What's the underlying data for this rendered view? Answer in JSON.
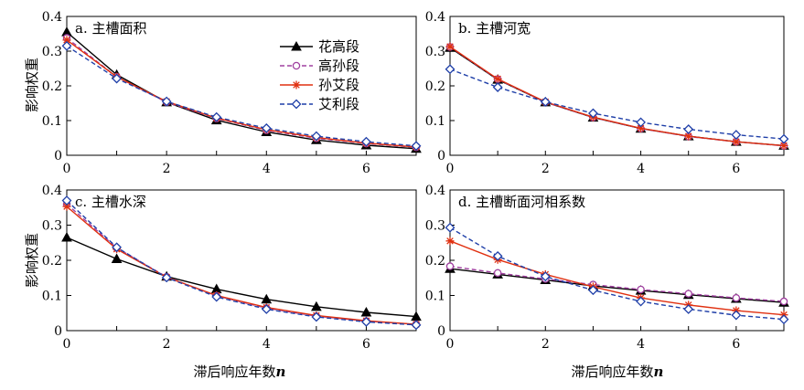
{
  "figure": {
    "y_axis_label": "影响权重",
    "x_axis_label_text": "滞后响应年数",
    "x_axis_label_var": "n"
  },
  "legend": [
    {
      "name": "花高段",
      "color": "#000000",
      "marker": "triangle",
      "dash": "solid"
    },
    {
      "name": "高孙段",
      "color": "#a040a0",
      "marker": "circle",
      "dash": "dash"
    },
    {
      "name": "孙艾段",
      "color": "#e03010",
      "marker": "star",
      "dash": "solid"
    },
    {
      "name": "艾利段",
      "color": "#1f3fa8",
      "marker": "diamond",
      "dash": "dash"
    }
  ],
  "chart_data": [
    {
      "type": "line",
      "title": "a. 主槽面积",
      "x": [
        0,
        1,
        2,
        3,
        4,
        5,
        6,
        7
      ],
      "xlim": [
        0,
        7
      ],
      "ylim": [
        0,
        0.4
      ],
      "xticks": [
        "0",
        "2",
        "4",
        "6"
      ],
      "yticks": [
        "0",
        "0.1",
        "0.2",
        "0.3",
        "0.4"
      ],
      "series": [
        {
          "name": "花高段",
          "values": [
            0.355,
            0.232,
            0.153,
            0.101,
            0.067,
            0.044,
            0.029,
            0.019
          ]
        },
        {
          "name": "高孙段",
          "values": [
            0.338,
            0.226,
            0.153,
            0.106,
            0.072,
            0.049,
            0.034,
            0.023
          ]
        },
        {
          "name": "孙艾段",
          "values": [
            0.332,
            0.226,
            0.155,
            0.107,
            0.074,
            0.051,
            0.035,
            0.024
          ]
        },
        {
          "name": "艾利段",
          "values": [
            0.315,
            0.221,
            0.155,
            0.11,
            0.078,
            0.055,
            0.039,
            0.027
          ]
        }
      ]
    },
    {
      "type": "line",
      "title": "b. 主槽河宽",
      "x": [
        0,
        1,
        2,
        3,
        4,
        5,
        6,
        7
      ],
      "xlim": [
        0,
        7
      ],
      "ylim": [
        0,
        0.4
      ],
      "xticks": [
        "0",
        "2",
        "4",
        "6"
      ],
      "yticks": [
        "0",
        "0.1",
        "0.2",
        "0.3",
        "0.4"
      ],
      "series": [
        {
          "name": "花高段",
          "values": [
            0.31,
            0.218,
            0.153,
            0.109,
            0.077,
            0.055,
            0.039,
            0.028
          ]
        },
        {
          "name": "高孙段",
          "values": [
            0.312,
            0.219,
            0.153,
            0.109,
            0.077,
            0.054,
            0.039,
            0.027
          ]
        },
        {
          "name": "孙艾段",
          "values": [
            0.313,
            0.22,
            0.154,
            0.11,
            0.078,
            0.055,
            0.039,
            0.028
          ]
        },
        {
          "name": "艾利段",
          "values": [
            0.248,
            0.196,
            0.154,
            0.121,
            0.095,
            0.075,
            0.059,
            0.047
          ]
        }
      ]
    },
    {
      "type": "line",
      "title": "c. 主槽水深",
      "x": [
        0,
        1,
        2,
        3,
        4,
        5,
        6,
        7
      ],
      "xlim": [
        0,
        7
      ],
      "ylim": [
        0,
        0.4
      ],
      "xticks": [
        "0",
        "2",
        "4",
        "6"
      ],
      "yticks": [
        "0",
        "0.1",
        "0.2",
        "0.3",
        "0.4"
      ],
      "series": [
        {
          "name": "花高段",
          "values": [
            0.265,
            0.204,
            0.154,
            0.118,
            0.089,
            0.068,
            0.052,
            0.04
          ]
        },
        {
          "name": "高孙段",
          "values": [
            0.36,
            0.235,
            0.153,
            0.099,
            0.064,
            0.041,
            0.027,
            0.018
          ]
        },
        {
          "name": "孙艾段",
          "values": [
            0.353,
            0.232,
            0.152,
            0.1,
            0.066,
            0.043,
            0.028,
            0.018
          ]
        },
        {
          "name": "艾利段",
          "values": [
            0.37,
            0.237,
            0.151,
            0.096,
            0.061,
            0.039,
            0.025,
            0.016
          ]
        }
      ]
    },
    {
      "type": "line",
      "title": "d. 主槽断面河相系数",
      "x": [
        0,
        1,
        2,
        3,
        4,
        5,
        6,
        7
      ],
      "xlim": [
        0,
        7
      ],
      "ylim": [
        0,
        0.4
      ],
      "xticks": [
        "0",
        "2",
        "4",
        "6"
      ],
      "yticks": [
        "0",
        "0.1",
        "0.2",
        "0.3",
        "0.4"
      ],
      "series": [
        {
          "name": "花高段",
          "values": [
            0.176,
            0.16,
            0.144,
            0.127,
            0.114,
            0.102,
            0.091,
            0.08
          ]
        },
        {
          "name": "高孙段",
          "values": [
            0.183,
            0.164,
            0.147,
            0.131,
            0.117,
            0.105,
            0.093,
            0.083
          ]
        },
        {
          "name": "孙艾段",
          "values": [
            0.255,
            0.202,
            0.16,
            0.125,
            0.093,
            0.073,
            0.057,
            0.045
          ]
        },
        {
          "name": "艾利段",
          "values": [
            0.293,
            0.212,
            0.154,
            0.115,
            0.083,
            0.061,
            0.044,
            0.032
          ]
        }
      ]
    }
  ]
}
